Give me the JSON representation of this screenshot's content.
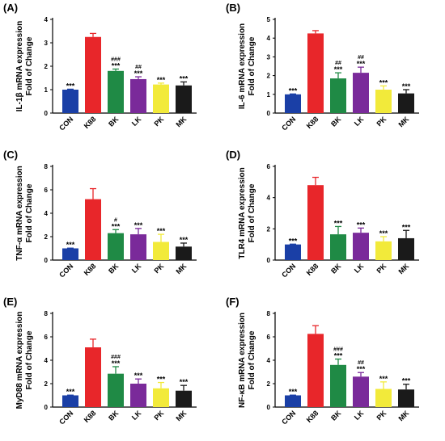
{
  "colors": {
    "CON": "#1a3fa6",
    "K88": "#e8262a",
    "BK": "#1f8a45",
    "LK": "#7a2a9a",
    "PK": "#f2ea3a",
    "MK": "#1a1a1a"
  },
  "chart_data": [
    {
      "type": "bar",
      "panel": "(A)",
      "ylabel_lines": [
        "IL-1β mRNA expression",
        "Fold of Change"
      ],
      "categories": [
        "CON",
        "K88",
        "BK",
        "LK",
        "PK",
        "MK"
      ],
      "values": [
        1.0,
        3.25,
        1.8,
        1.45,
        1.22,
        1.18
      ],
      "errors": [
        0.02,
        0.15,
        0.08,
        0.1,
        0.06,
        0.15
      ],
      "sig": [
        "***",
        "",
        "***",
        "***",
        "***",
        "***"
      ],
      "hash": [
        "",
        "",
        "###",
        "##",
        "",
        ""
      ],
      "ylim": [
        0,
        4
      ],
      "yticks": [
        0,
        1,
        2,
        3,
        4
      ]
    },
    {
      "type": "bar",
      "panel": "(B)",
      "ylabel_lines": [
        "IL-6 mRNA expression",
        "Fold of Change"
      ],
      "categories": [
        "CON",
        "K88",
        "BK",
        "LK",
        "PK",
        "MK"
      ],
      "values": [
        1.0,
        4.25,
        1.85,
        2.15,
        1.25,
        1.05
      ],
      "errors": [
        0.02,
        0.15,
        0.3,
        0.3,
        0.2,
        0.2
      ],
      "sig": [
        "***",
        "",
        "***",
        "***",
        "***",
        "***"
      ],
      "hash": [
        "",
        "",
        "##",
        "##",
        "",
        ""
      ],
      "ylim": [
        0,
        5
      ],
      "yticks": [
        0,
        1,
        2,
        3,
        4,
        5
      ]
    },
    {
      "type": "bar",
      "panel": "(C)",
      "ylabel_lines": [
        "TNF-α mRNA expression",
        "Fold of Change"
      ],
      "categories": [
        "CON",
        "K88",
        "BK",
        "LK",
        "PK",
        "MK"
      ],
      "values": [
        1.0,
        5.2,
        2.3,
        2.2,
        1.55,
        1.15
      ],
      "errors": [
        0.02,
        0.9,
        0.3,
        0.5,
        0.65,
        0.3
      ],
      "sig": [
        "***",
        "",
        "***",
        "***",
        "***",
        "***"
      ],
      "hash": [
        "",
        "",
        "#",
        "",
        "",
        ""
      ],
      "ylim": [
        0,
        8
      ],
      "yticks": [
        0,
        2,
        4,
        6,
        8
      ]
    },
    {
      "type": "bar",
      "panel": "(D)",
      "ylabel_lines": [
        "TLR4 mRNA expression",
        "Fold of Change"
      ],
      "categories": [
        "CON",
        "K88",
        "BK",
        "LK",
        "PK",
        "MK"
      ],
      "values": [
        1.0,
        4.8,
        1.65,
        1.75,
        1.2,
        1.4
      ],
      "errors": [
        0.02,
        0.5,
        0.5,
        0.3,
        0.3,
        0.5
      ],
      "sig": [
        "***",
        "",
        "***",
        "***",
        "***",
        "***"
      ],
      "hash": [
        "",
        "",
        "",
        "",
        "",
        ""
      ],
      "ylim": [
        0,
        6
      ],
      "yticks": [
        0,
        2,
        4,
        6
      ]
    },
    {
      "type": "bar",
      "panel": "(E)",
      "ylabel_lines": [
        "MyD88 mRNA expression",
        "Fold of Change"
      ],
      "categories": [
        "CON",
        "K88",
        "BK",
        "LK",
        "PK",
        "MK"
      ],
      "values": [
        1.0,
        5.1,
        2.85,
        2.0,
        1.6,
        1.4
      ],
      "errors": [
        0.02,
        0.7,
        0.6,
        0.4,
        0.5,
        0.45
      ],
      "sig": [
        "***",
        "",
        "***",
        "***",
        "***",
        "***"
      ],
      "hash": [
        "",
        "",
        "###",
        "",
        "",
        ""
      ],
      "ylim": [
        0,
        8
      ],
      "yticks": [
        0,
        2,
        4,
        6,
        8
      ]
    },
    {
      "type": "bar",
      "panel": "(F)",
      "ylabel_lines": [
        "NF-κB mRNA expression",
        "Fold of Change"
      ],
      "categories": [
        "CON",
        "K88",
        "BK",
        "LK",
        "PK",
        "MK"
      ],
      "values": [
        1.0,
        6.25,
        3.6,
        2.6,
        1.55,
        1.5
      ],
      "errors": [
        0.02,
        0.7,
        0.5,
        0.35,
        0.6,
        0.45
      ],
      "sig": [
        "***",
        "",
        "***",
        "***",
        "***",
        "***"
      ],
      "hash": [
        "",
        "",
        "###",
        "##",
        "",
        ""
      ],
      "ylim": [
        0,
        8
      ],
      "yticks": [
        0,
        2,
        4,
        6,
        8
      ]
    }
  ]
}
